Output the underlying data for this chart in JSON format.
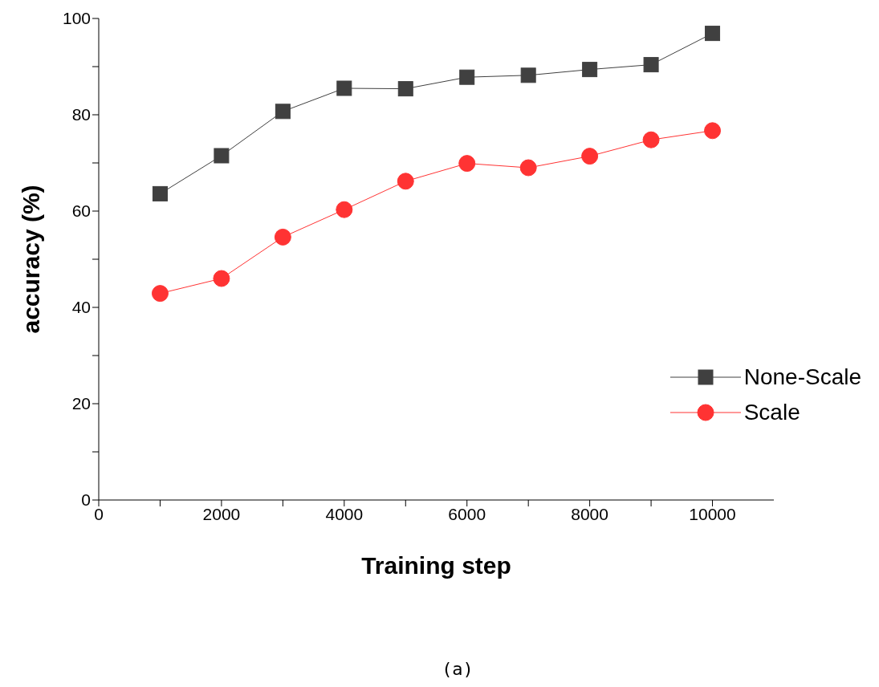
{
  "chart_data": {
    "type": "line",
    "xlabel": "Training step",
    "ylabel": "accuracy (%)",
    "annotations": [
      "(a)"
    ],
    "x": [
      1000,
      2000,
      3000,
      4000,
      5000,
      6000,
      7000,
      8000,
      9000,
      10000
    ],
    "series": [
      {
        "name": "None-Scale",
        "color": "#404040",
        "marker": "square",
        "values": [
          63.6,
          71.5,
          80.7,
          85.5,
          85.4,
          87.8,
          88.2,
          89.4,
          90.4,
          96.9
        ]
      },
      {
        "name": "Scale",
        "color": "#ff3333",
        "marker": "circle",
        "values": [
          42.9,
          46.0,
          54.6,
          60.3,
          66.2,
          69.9,
          69.0,
          71.4,
          74.8,
          76.7
        ]
      }
    ],
    "xlim": [
      0,
      11000
    ],
    "xticks": [
      0,
      {
        "value": 1000,
        "label": null
      },
      2000,
      {
        "value": 3000,
        "label": null
      },
      4000,
      {
        "value": 5000,
        "label": null
      },
      6000,
      {
        "value": 7000,
        "label": null
      },
      8000,
      {
        "value": 9000,
        "label": null
      },
      10000
    ],
    "ylim": [
      0,
      100
    ],
    "yticks": [
      0,
      {
        "value": 10,
        "label": null
      },
      20,
      {
        "value": 30,
        "label": null
      },
      40,
      {
        "value": 50,
        "label": null
      },
      60,
      {
        "value": 70,
        "label": null
      },
      80,
      {
        "value": 90,
        "label": null
      },
      100
    ],
    "grid": false,
    "legend": "right",
    "line_style": "solid"
  }
}
